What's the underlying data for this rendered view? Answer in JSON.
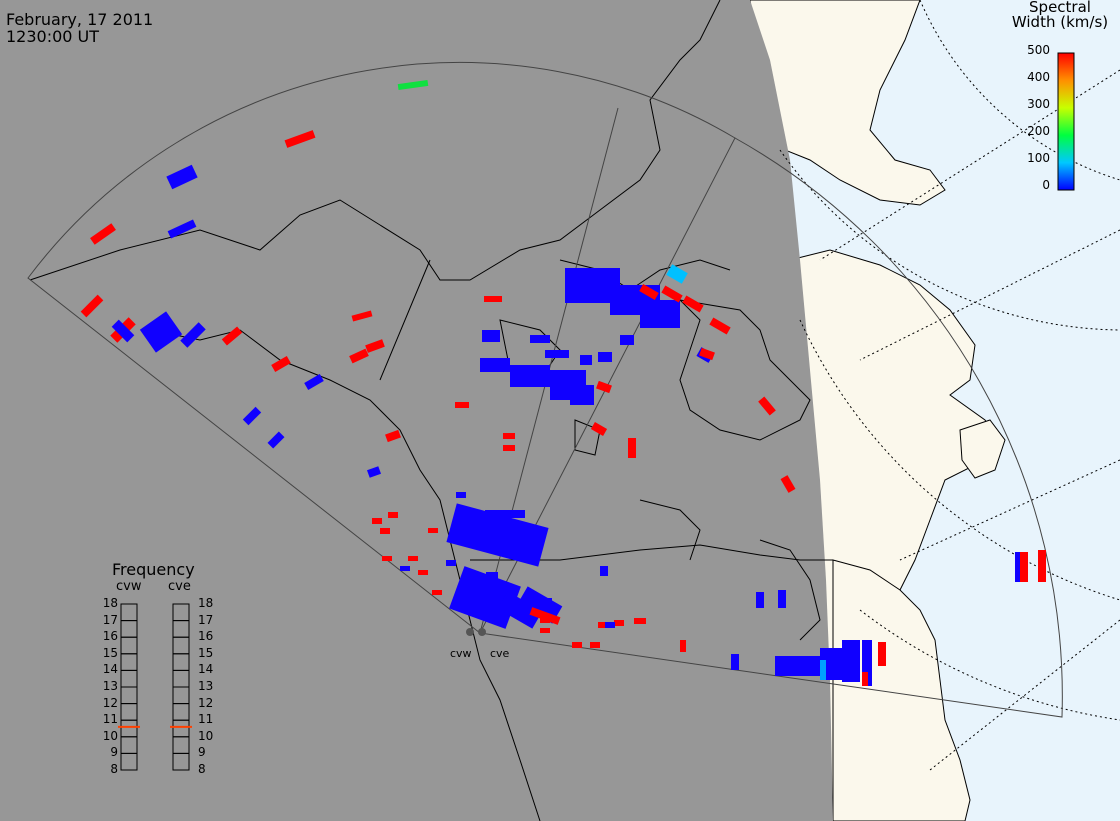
{
  "header": {
    "date": "February, 17 2011",
    "time": "1230:00 UT"
  },
  "colorbar": {
    "title_line1": "Spectral",
    "title_line2": "Width (km/s)",
    "ticks": [
      "500",
      "400",
      "300",
      "200",
      "100",
      "0"
    ],
    "range": [
      0,
      500
    ]
  },
  "frequency_panel": {
    "title": "Frequency",
    "radars": [
      {
        "name": "cvw",
        "value_mhz": 10.6
      },
      {
        "name": "cve",
        "value_mhz": 10.6
      }
    ],
    "scale": [
      "18",
      "17",
      "16",
      "15",
      "14",
      "13",
      "12",
      "11",
      "10",
      "9",
      "8"
    ],
    "range": [
      8,
      18
    ],
    "marker_color": "#ff4000"
  },
  "sites": [
    {
      "name": "cvw"
    },
    {
      "name": "cve"
    }
  ],
  "colors": {
    "night": "#979797",
    "land_day": "#fbf8ec",
    "sea_day": "#e8f4fc",
    "low_width": "#1000ff",
    "high_width": "#ff0000"
  }
}
